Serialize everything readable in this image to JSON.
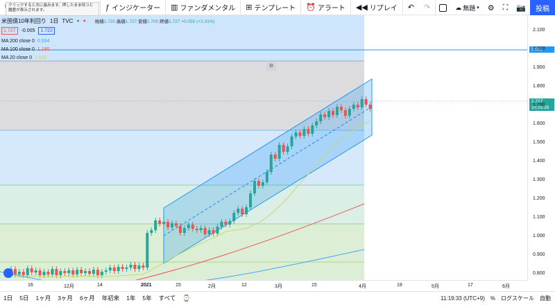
{
  "tooltip": "クリックすると次に進みます。押したまま待つと履歴が表示されます。",
  "toolbar": {
    "indicators_label": "インジケーター",
    "fundamentals_label": "ファンダメンタル",
    "templates_label": "テンプレート",
    "alert_label": "アラート",
    "replay_label": "リプレイ",
    "untitled_label": "無題",
    "post_label": "投稿"
  },
  "legend": {
    "title": "米国債10年利回り",
    "interval": "1日",
    "source": "TVC",
    "open_label": "始値",
    "open": "1.720",
    "high_label": "高値",
    "high": "1.727",
    "low_label": "安値",
    "low": "1.700",
    "close_label": "終値",
    "close": "1.727",
    "change": "+0.055 (+3.31%)",
    "bid": "1.727",
    "spread": "-0.005",
    "ask": "1.722",
    "ma200_label": "MA 200 close 0",
    "ma200_value": "0.934",
    "ma100_label": "MA 100 close 0",
    "ma100_value": "1.180",
    "ma20_label": "MA 20 close 0",
    "ma20_value": "1.646"
  },
  "price_axis": {
    "ticks": [
      "2.100",
      "2.000",
      "1.900",
      "1.800",
      "1.700",
      "1.600",
      "1.500",
      "1.400",
      "1.300",
      "1.200",
      "1.100",
      "1.000",
      "0.900",
      "0.800"
    ],
    "tag_level": "2.002",
    "tag_last": "1.727",
    "tag_countdown": "20:25:26"
  },
  "time_axis": {
    "ticks": [
      "16",
      "12月",
      "14",
      "2021",
      "15",
      "2月",
      "12",
      "3月",
      "15",
      "4月",
      "19",
      "5月",
      "17",
      "6月"
    ]
  },
  "bottom": {
    "ranges": [
      "1日",
      "5日",
      "1ヶ月",
      "3ヶ月",
      "6ヶ月",
      "年初来",
      "1年",
      "5年",
      "すべて"
    ],
    "time": "11:19:33 (UTC+9)",
    "percent": "%",
    "log": "ログスケール",
    "auto": "自動"
  },
  "colors": {
    "up": "#26a69a",
    "down": "#ef5350",
    "channel": "#2196f3",
    "ma20": "#c6d96f",
    "ma100": "#ef5350",
    "ma200": "#42a5f5"
  },
  "icons": {
    "undo": "undo-icon",
    "redo": "redo-icon",
    "settings": "gear-icon",
    "fullscreen": "fullscreen-icon",
    "camera": "camera-icon"
  }
}
